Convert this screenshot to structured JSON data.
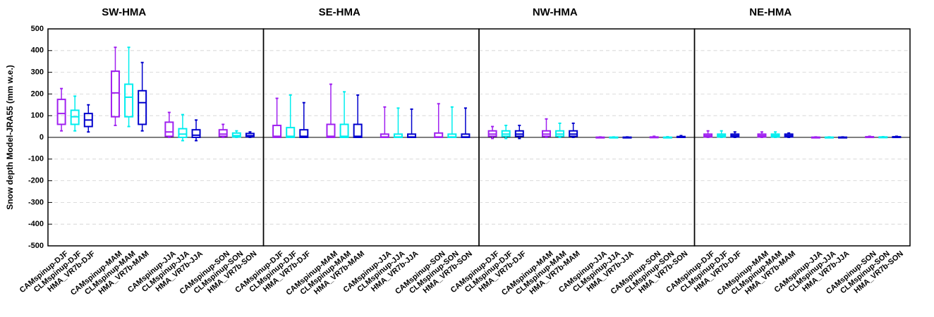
{
  "chart_data": [
    {
      "type": "box",
      "title": "SW-HMA",
      "ylabel": "Snow depth Model-JRA55 (mm w.e.)",
      "ylim": [
        -500,
        500
      ],
      "yticks": [
        -500,
        -400,
        -300,
        -200,
        -100,
        0,
        100,
        200,
        300,
        400,
        500
      ],
      "grid": true,
      "categories": [
        "CAMspinup-DJF",
        "CLMspinup-DJF",
        "HMA_VR7b-DJF",
        null,
        "CAMspinup-MAM",
        "CLMspinup-MAM",
        "HMA_VR7b-MAM",
        null,
        "CAMspinup-JJA",
        "CLMspinup-JJA",
        "HMA_VR7b-JJA",
        null,
        "CAMspinup-SON",
        "CLMspinup-SON",
        "HMA_VR7b-SON"
      ],
      "boxes": [
        {
          "color": "#a020f0",
          "low": 30,
          "q1": 60,
          "median": 110,
          "q3": 175,
          "high": 225
        },
        {
          "color": "#00eeee",
          "low": 30,
          "q1": 60,
          "median": 95,
          "q3": 125,
          "high": 190
        },
        {
          "color": "#0000cd",
          "low": 25,
          "q1": 50,
          "median": 80,
          "q3": 110,
          "high": 150
        },
        null,
        {
          "color": "#a020f0",
          "low": 55,
          "q1": 95,
          "median": 205,
          "q3": 305,
          "high": 415
        },
        {
          "color": "#00eeee",
          "low": 50,
          "q1": 95,
          "median": 185,
          "q3": 245,
          "high": 415
        },
        {
          "color": "#0000cd",
          "low": 30,
          "q1": 60,
          "median": 160,
          "q3": 215,
          "high": 345
        },
        null,
        {
          "color": "#a020f0",
          "low": 0,
          "q1": 5,
          "median": 25,
          "q3": 70,
          "high": 115
        },
        {
          "color": "#00eeee",
          "low": -15,
          "q1": 0,
          "median": 15,
          "q3": 40,
          "high": 105
        },
        {
          "color": "#0000cd",
          "low": -15,
          "q1": 0,
          "median": 10,
          "q3": 35,
          "high": 80
        },
        null,
        {
          "color": "#a020f0",
          "low": 0,
          "q1": 5,
          "median": 15,
          "q3": 35,
          "high": 60
        },
        {
          "color": "#00eeee",
          "low": 0,
          "q1": 2,
          "median": 8,
          "q3": 20,
          "high": 30
        },
        {
          "color": "#0000cd",
          "low": 0,
          "q1": 3,
          "median": 8,
          "q3": 18,
          "high": 25
        }
      ]
    },
    {
      "type": "box",
      "title": "SE-HMA",
      "ylim": [
        -500,
        500
      ],
      "yticks": [
        -500,
        -400,
        -300,
        -200,
        -100,
        0,
        100,
        200,
        300,
        400,
        500
      ],
      "grid": true,
      "categories": [
        "CAMspinup-DJF",
        "CLMspinup-DJF",
        "HMA_VR7b-DJF",
        null,
        "CAMspinup-MAM",
        "CLMspinup-MAM",
        "HMA_VR7b-MAM",
        null,
        "CAMspinup-JJA",
        "CLMspinup-JJA",
        "HMA_VR7b-JJA",
        null,
        "CAMspinup-SON",
        "CLMspinup-SON",
        "HMA_VR7b-SON"
      ],
      "boxes": [
        {
          "color": "#a020f0",
          "low": 0,
          "q1": 0,
          "median": 5,
          "q3": 55,
          "high": 180
        },
        {
          "color": "#00eeee",
          "low": 0,
          "q1": 0,
          "median": 5,
          "q3": 45,
          "high": 195
        },
        {
          "color": "#0000cd",
          "low": 0,
          "q1": 0,
          "median": 5,
          "q3": 35,
          "high": 160
        },
        null,
        {
          "color": "#a020f0",
          "low": 0,
          "q1": 0,
          "median": 5,
          "q3": 60,
          "high": 245
        },
        {
          "color": "#00eeee",
          "low": 0,
          "q1": 0,
          "median": 5,
          "q3": 60,
          "high": 210
        },
        {
          "color": "#0000cd",
          "low": 0,
          "q1": 0,
          "median": 5,
          "q3": 60,
          "high": 195
        },
        null,
        {
          "color": "#a020f0",
          "low": 0,
          "q1": 0,
          "median": 2,
          "q3": 15,
          "high": 140
        },
        {
          "color": "#00eeee",
          "low": 0,
          "q1": 0,
          "median": 2,
          "q3": 15,
          "high": 135
        },
        {
          "color": "#0000cd",
          "low": 0,
          "q1": 0,
          "median": 2,
          "q3": 15,
          "high": 130
        },
        null,
        {
          "color": "#a020f0",
          "low": 0,
          "q1": 0,
          "median": 2,
          "q3": 20,
          "high": 155
        },
        {
          "color": "#00eeee",
          "low": 0,
          "q1": 0,
          "median": 2,
          "q3": 15,
          "high": 140
        },
        {
          "color": "#0000cd",
          "low": 0,
          "q1": 0,
          "median": 2,
          "q3": 15,
          "high": 135
        }
      ]
    },
    {
      "type": "box",
      "title": "NW-HMA",
      "ylim": [
        -500,
        500
      ],
      "yticks": [
        -500,
        -400,
        -300,
        -200,
        -100,
        0,
        100,
        200,
        300,
        400,
        500
      ],
      "grid": true,
      "categories": [
        "CAMspinup-DJF",
        "CLMspinup-DJF",
        "HMA_VR7b-DJF",
        null,
        "CAMspinup-MAM",
        "CLMspinup-MAM",
        "HMA_VR7b-MAM",
        null,
        "CAMspinup-JJA",
        "CLMspinup-JJA",
        "HMA_VR7b-JJA",
        null,
        "CAMspinup-SON",
        "CLMspinup-SON",
        "HMA_VR7b-SON"
      ],
      "boxes": [
        {
          "color": "#a020f0",
          "low": -5,
          "q1": 5,
          "median": 15,
          "q3": 30,
          "high": 50
        },
        {
          "color": "#00eeee",
          "low": -5,
          "q1": 5,
          "median": 15,
          "q3": 30,
          "high": 55
        },
        {
          "color": "#0000cd",
          "low": -5,
          "q1": 5,
          "median": 15,
          "q3": 30,
          "high": 55
        },
        null,
        {
          "color": "#a020f0",
          "low": 0,
          "q1": 5,
          "median": 15,
          "q3": 30,
          "high": 85
        },
        {
          "color": "#00eeee",
          "low": 0,
          "q1": 5,
          "median": 15,
          "q3": 30,
          "high": 65
        },
        {
          "color": "#0000cd",
          "low": 0,
          "q1": 5,
          "median": 15,
          "q3": 30,
          "high": 65
        },
        null,
        {
          "color": "#a020f0",
          "low": 0,
          "q1": 0,
          "median": 0,
          "q3": 1,
          "high": 2
        },
        {
          "color": "#00eeee",
          "low": 0,
          "q1": 0,
          "median": 0,
          "q3": 1,
          "high": 2
        },
        {
          "color": "#0000cd",
          "low": 0,
          "q1": 0,
          "median": 0,
          "q3": 1,
          "high": 2
        },
        null,
        {
          "color": "#a020f0",
          "low": 0,
          "q1": 0,
          "median": 0,
          "q3": 2,
          "high": 5
        },
        {
          "color": "#00eeee",
          "low": 0,
          "q1": 0,
          "median": 0,
          "q3": 1,
          "high": 3
        },
        {
          "color": "#0000cd",
          "low": 0,
          "q1": 0,
          "median": 1,
          "q3": 4,
          "high": 8
        }
      ]
    },
    {
      "type": "box",
      "title": "NE-HMA",
      "ylim": [
        -500,
        500
      ],
      "yticks": [
        -500,
        -400,
        -300,
        -200,
        -100,
        0,
        100,
        200,
        300,
        400,
        500
      ],
      "grid": true,
      "categories": [
        "CAMspinup-DJF",
        "CLMspinup-DJF",
        "HMA_VR7b-DJF",
        null,
        "CAMspinup-MAM",
        "CLMspinup-MAM",
        "HMA_VR7b-MAM",
        null,
        "CAMspinup-JJA",
        "CLMspinup-JJA",
        "HMA_VR7b-JJA",
        null,
        "CAMspinup-SON",
        "CLMspinup-SON",
        "HMA_VR7b-SON"
      ],
      "boxes": [
        {
          "color": "#a020f0",
          "low": 0,
          "q1": 2,
          "median": 8,
          "q3": 15,
          "high": 30
        },
        {
          "color": "#00eeee",
          "low": 0,
          "q1": 2,
          "median": 8,
          "q3": 15,
          "high": 30
        },
        {
          "color": "#0000cd",
          "low": 0,
          "q1": 2,
          "median": 8,
          "q3": 15,
          "high": 25
        },
        null,
        {
          "color": "#a020f0",
          "low": 0,
          "q1": 2,
          "median": 8,
          "q3": 15,
          "high": 25
        },
        {
          "color": "#00eeee",
          "low": 0,
          "q1": 2,
          "median": 8,
          "q3": 15,
          "high": 25
        },
        {
          "color": "#0000cd",
          "low": 0,
          "q1": 2,
          "median": 8,
          "q3": 15,
          "high": 20
        },
        null,
        {
          "color": "#a020f0",
          "low": 0,
          "q1": 0,
          "median": 0,
          "q3": 1,
          "high": 2
        },
        {
          "color": "#00eeee",
          "low": 0,
          "q1": 0,
          "median": 0,
          "q3": 1,
          "high": 2
        },
        {
          "color": "#0000cd",
          "low": 0,
          "q1": 0,
          "median": 0,
          "q3": 1,
          "high": 2
        },
        null,
        {
          "color": "#a020f0",
          "low": 0,
          "q1": 0,
          "median": 1,
          "q3": 3,
          "high": 5
        },
        {
          "color": "#00eeee",
          "low": 0,
          "q1": 0,
          "median": 0,
          "q3": 2,
          "high": 3
        },
        {
          "color": "#0000cd",
          "low": 0,
          "q1": 0,
          "median": 1,
          "q3": 3,
          "high": 5
        }
      ]
    }
  ]
}
